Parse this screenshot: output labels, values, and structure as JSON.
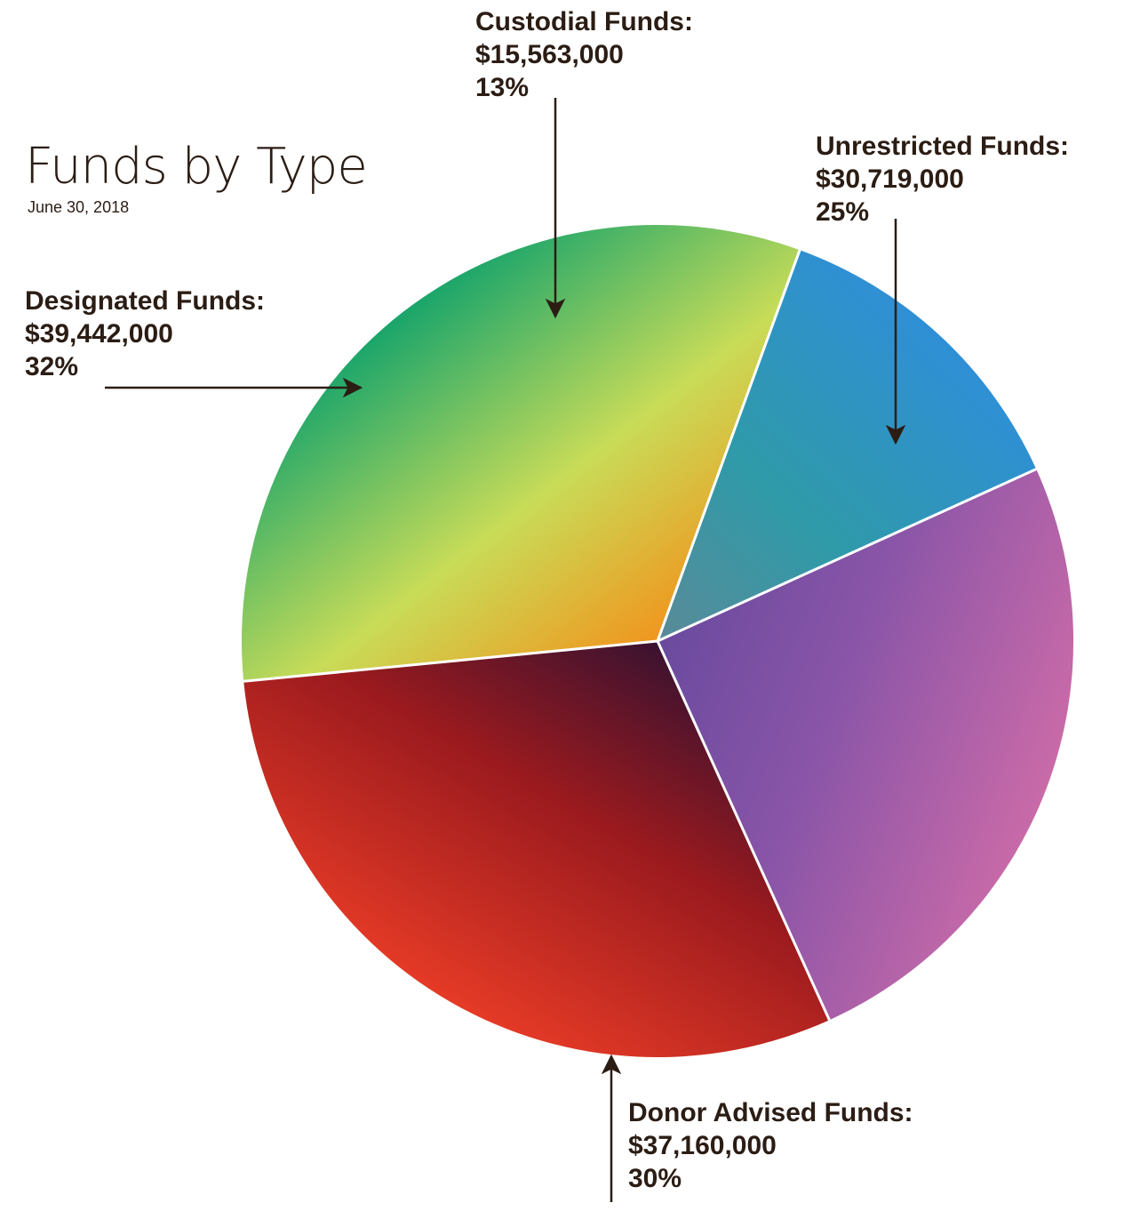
{
  "colors": {
    "text": "#2b1d14",
    "divider": "#ffffff",
    "custodial": [
      "#2f8fd6",
      "#2f9aa8",
      "#5a8a98"
    ],
    "unrestricted": [
      "#c96aa8",
      "#8a55a8",
      "#6a4a9e"
    ],
    "donor": [
      "#e53a26",
      "#9b1a1e",
      "#3a1230"
    ],
    "designated": [
      "#1aa56b",
      "#c8dc58",
      "#f0961e"
    ]
  },
  "chart_data": {
    "type": "pie",
    "title": "Funds by Type",
    "subtitle": "June 30, 2018",
    "slices": [
      {
        "key": "custodial",
        "label": "Custodial Funds:",
        "value": 15563000,
        "value_label": "$15,563,000",
        "percent": 13,
        "percent_label": "13%"
      },
      {
        "key": "unrestricted",
        "label": "Unrestricted Funds:",
        "value": 30719000,
        "value_label": "$30,719,000",
        "percent": 25,
        "percent_label": "25%"
      },
      {
        "key": "donor",
        "label": "Donor Advised Funds:",
        "value": 37160000,
        "value_label": "$37,160,000",
        "percent": 30,
        "percent_label": "30%"
      },
      {
        "key": "designated",
        "label": "Designated Funds:",
        "value": 39442000,
        "value_label": "$39,442,000",
        "percent": 32,
        "percent_label": "32%"
      }
    ],
    "start_angle_deg": 20,
    "direction": "clockwise"
  }
}
